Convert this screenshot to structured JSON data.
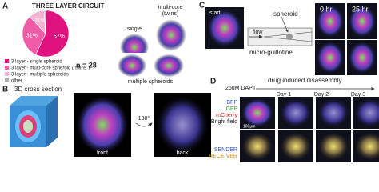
{
  "chart_data": {
    "type": "pie",
    "title": "THREE LAYER CIRCUIT",
    "categories": [
      "3 layer - single spheroid",
      "3 layer - multi-core spheroid (\"twins\")",
      "3 layer - multiple spheroids",
      "other"
    ],
    "values": [
      57,
      31,
      11,
      1
    ],
    "value_labels": [
      "57%",
      "31%",
      "11%",
      null
    ],
    "colors": [
      "#e0127f",
      "#f05aa6",
      "#f7b3d4",
      "#b0b0b0"
    ],
    "note": "n = 28"
  },
  "panel_a": {
    "label": "A",
    "single": "single",
    "multi_core": "multi-core",
    "twins": "(twins)",
    "multiple": "multiple spheroids"
  },
  "panel_b": {
    "label": "B",
    "title": "3D cross section",
    "front": "front",
    "back": "back",
    "rotation": "180°"
  },
  "panel_c": {
    "label": "C",
    "start": "start",
    "flow": "flow",
    "spheroid": "spheroid",
    "device": "micro-guillotine",
    "t0": "0 hr",
    "t1": "25 hr"
  },
  "panel_d": {
    "label": "D",
    "title": "drug induced disassembly",
    "drug": "25uM DAPT",
    "days": [
      "Day 1",
      "Day 2",
      "Day 3"
    ],
    "channels": [
      "BFP",
      "GFP",
      "mCherry",
      "Bright field"
    ],
    "sender": "SENDER",
    "receiver": "RECEIVER",
    "scale": "100μm"
  }
}
